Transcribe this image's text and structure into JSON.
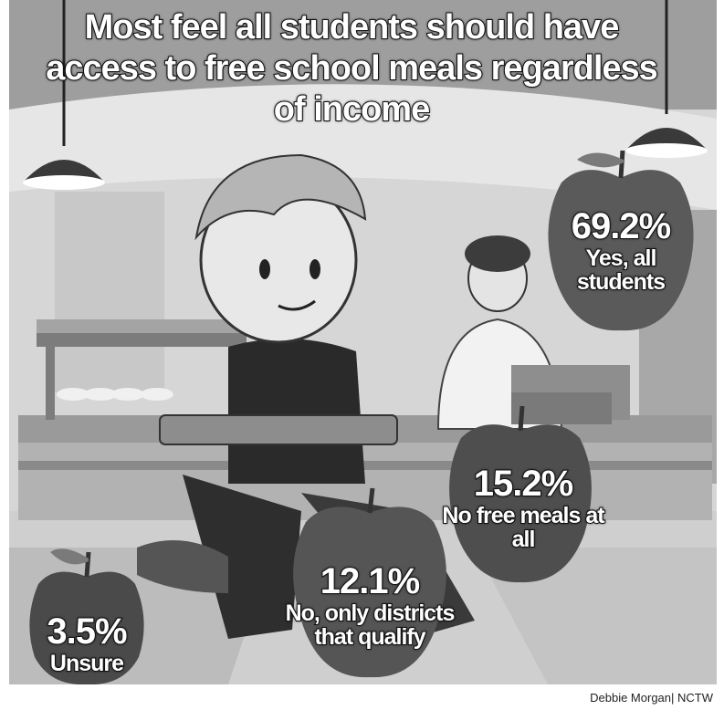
{
  "title": "Most feel all students should have access to free school meals regardless of income",
  "credit": "Debbie Morgan| NCTW",
  "chart_data": {
    "type": "pie",
    "title": "Most feel all students should have access to free school meals regardless of income",
    "unit": "%",
    "slices": [
      {
        "label": "Yes, all students",
        "value": 69.2,
        "value_text": "69.2%"
      },
      {
        "label": "No free meals at all",
        "value": 15.2,
        "value_text": "15.2%"
      },
      {
        "label": "No, only districts that qualify",
        "value": 12.1,
        "value_text": "12.1%"
      },
      {
        "label": "Unsure",
        "value": 3.5,
        "value_text": "3.5%"
      }
    ]
  }
}
